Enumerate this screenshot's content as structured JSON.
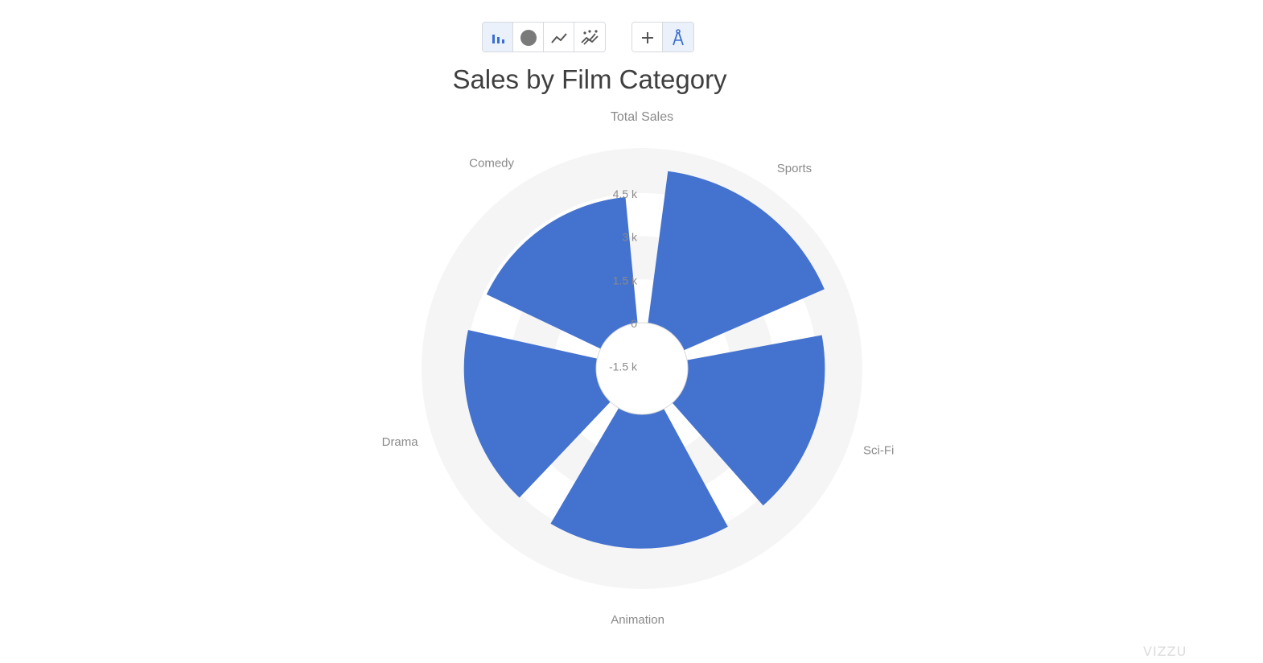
{
  "toolbar": {
    "chart_type_buttons": [
      {
        "name": "bar-chart-button",
        "icon": "bar-chart-icon",
        "active": true
      },
      {
        "name": "circle-chart-button",
        "icon": "circle-icon",
        "active": false
      },
      {
        "name": "line-chart-button",
        "icon": "line-chart-icon",
        "active": false
      },
      {
        "name": "scatter-chart-button",
        "icon": "scatter-chart-icon",
        "active": false
      }
    ],
    "mode_buttons": [
      {
        "name": "add-button",
        "icon": "plus-icon",
        "active": false
      },
      {
        "name": "polar-coordinate-button",
        "icon": "compass-icon",
        "active": true
      }
    ]
  },
  "logo_text": "VIZZU",
  "chart_data": {
    "type": "bar",
    "coordinate_system": "polar",
    "title": "Sales by Film Category",
    "ylabel": "Total Sales",
    "categories": [
      "Sports",
      "Sci-Fi",
      "Animation",
      "Drama",
      "Comedy"
    ],
    "values": [
      5314,
      4757,
      4656,
      4587,
      4383
    ],
    "ylim": [
      -2000,
      5500
    ],
    "yticks": [
      -1500,
      0,
      1500,
      3000,
      4500
    ],
    "ytick_labels": [
      "-1.5 k",
      "0",
      "1.5 k",
      "3 k",
      "4.5 k"
    ],
    "bar_color": "#4472cf",
    "grid": true
  }
}
